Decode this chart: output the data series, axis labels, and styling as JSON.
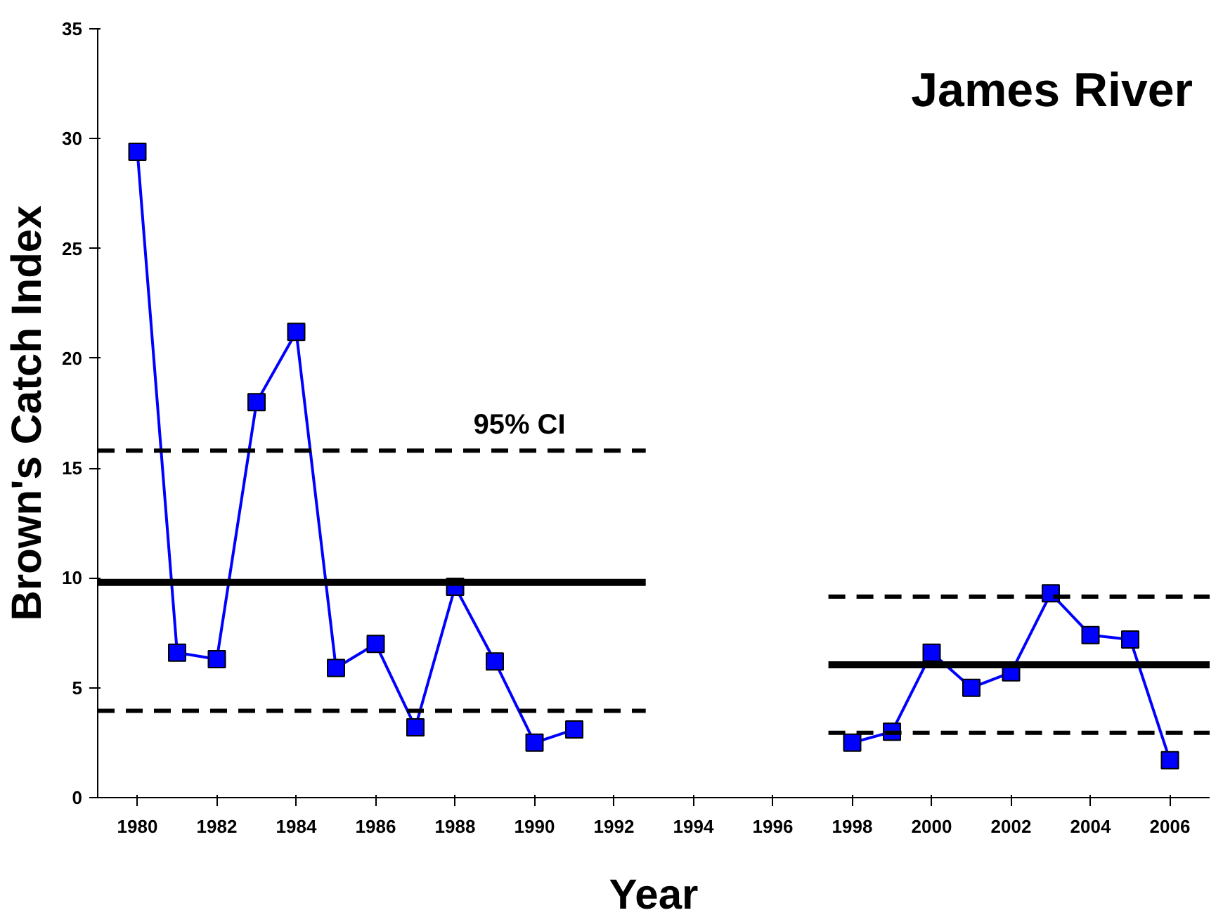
{
  "chart_data": {
    "type": "line",
    "title": "James River",
    "xlabel": "Year",
    "ylabel": "Brown's Catch Index",
    "xlim": [
      1979,
      2007
    ],
    "xticks": [
      1980,
      1982,
      1984,
      1986,
      1988,
      1990,
      1992,
      1994,
      1996,
      1998,
      2000,
      2002,
      2004,
      2006
    ],
    "ylim": [
      0,
      35
    ],
    "yticks": [
      0,
      5,
      10,
      15,
      20,
      25,
      30,
      35
    ],
    "grid": false,
    "annotations": [
      "95% CI"
    ],
    "series": [
      {
        "color": "#0000ff",
        "marker": "square",
        "line_style": "solid",
        "x": [
          1980,
          1981,
          1982,
          1983,
          1984,
          1985,
          1986,
          1987,
          1988,
          1989,
          1990,
          1991
        ],
        "values": [
          29.4,
          6.6,
          6.3,
          18.0,
          21.2,
          5.9,
          7.0,
          3.2,
          9.6,
          6.2,
          2.5,
          3.1
        ]
      },
      {
        "color": "#0000ff",
        "marker": "square",
        "line_style": "solid",
        "x": [
          1998,
          1999,
          2000,
          2001,
          2002,
          2003,
          2004,
          2005,
          2006
        ],
        "values": [
          2.5,
          3.0,
          6.6,
          5.0,
          5.7,
          9.3,
          7.4,
          7.2,
          1.7
        ]
      },
      {
        "color": "#000000",
        "marker": "none",
        "line_style": "solid",
        "x": [
          1979,
          1992.8
        ],
        "values": [
          9.8,
          9.8
        ]
      },
      {
        "color": "#000000",
        "marker": "none",
        "line_style": "dashed",
        "x": [
          1979,
          1992.8
        ],
        "values": [
          15.8,
          15.8
        ]
      },
      {
        "color": "#000000",
        "marker": "none",
        "line_style": "dashed",
        "x": [
          1979,
          1992.8
        ],
        "values": [
          3.95,
          3.95
        ]
      },
      {
        "color": "#000000",
        "marker": "none",
        "line_style": "solid",
        "x": [
          1997.4,
          2007
        ],
        "values": [
          6.05,
          6.05
        ]
      },
      {
        "color": "#000000",
        "marker": "none",
        "line_style": "dashed",
        "x": [
          1997.4,
          2007
        ],
        "values": [
          9.15,
          9.15
        ]
      },
      {
        "color": "#000000",
        "marker": "none",
        "line_style": "dashed",
        "x": [
          1997.4,
          2007
        ],
        "values": [
          2.95,
          2.95
        ]
      }
    ]
  }
}
